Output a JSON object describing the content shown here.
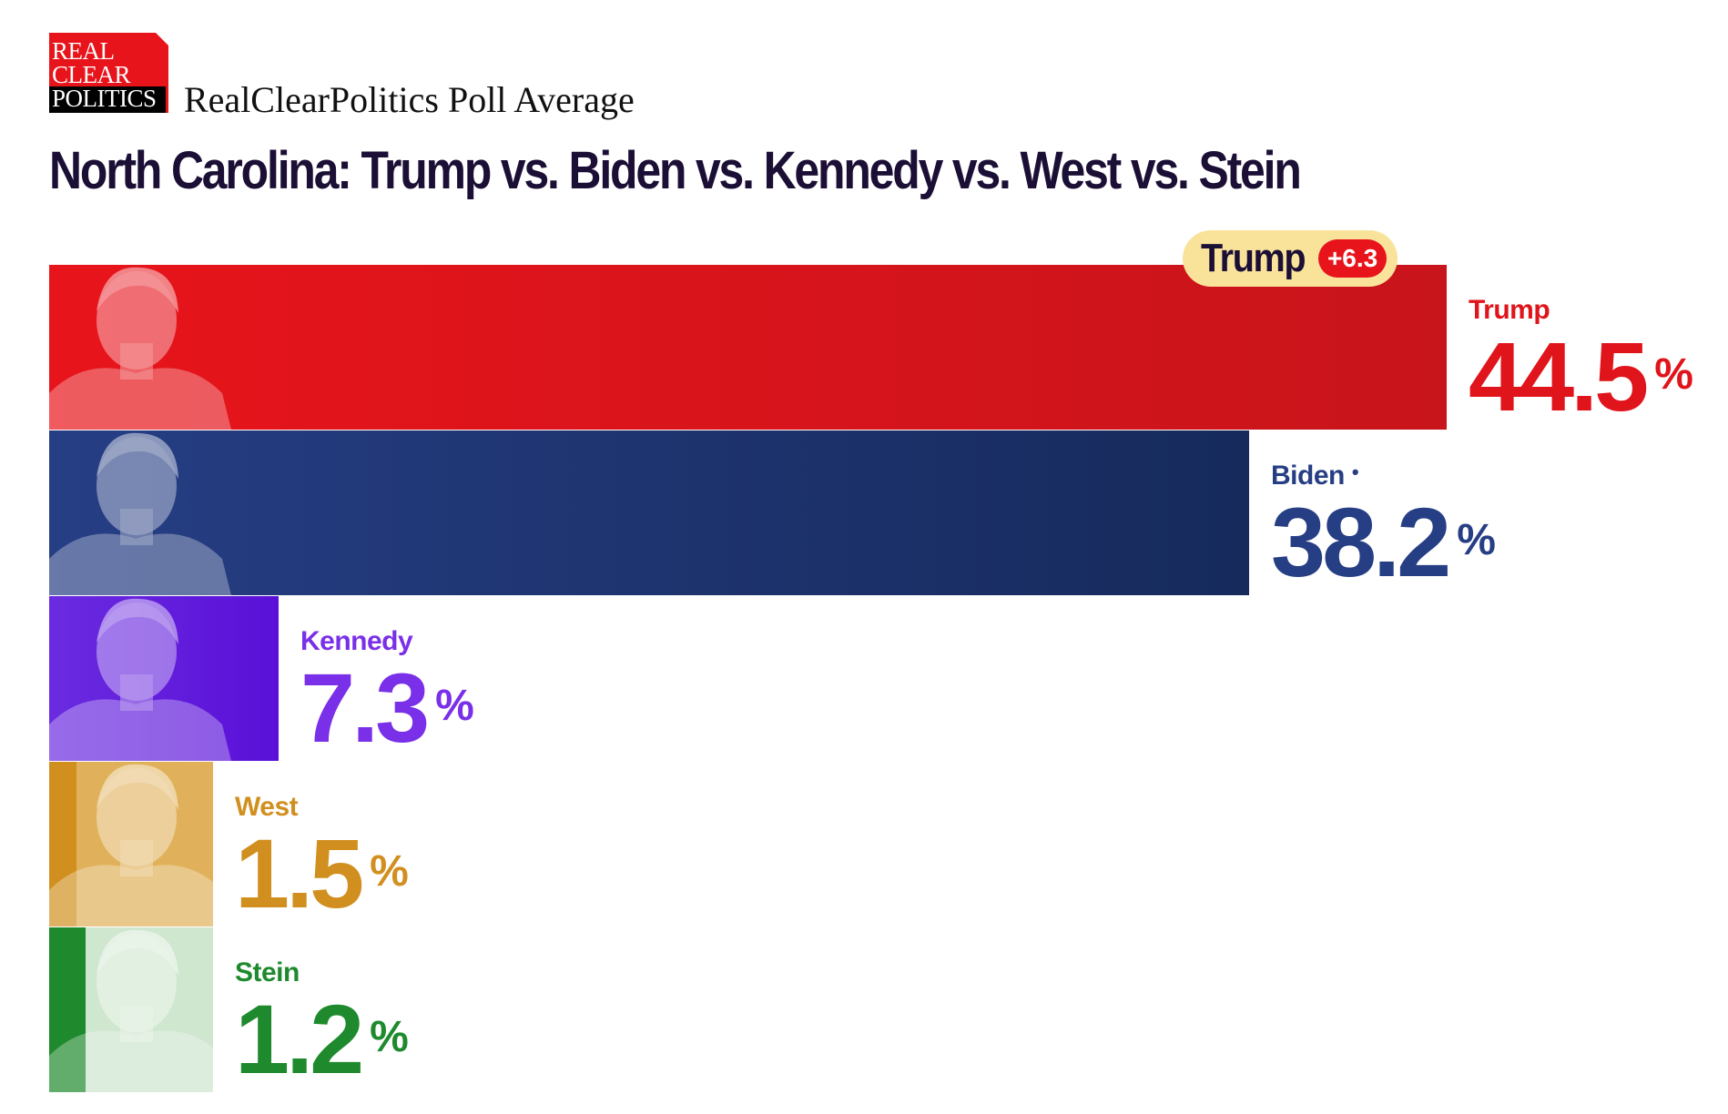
{
  "header": {
    "logo_lines": [
      "REAL",
      "CLEAR",
      "POLITICS"
    ],
    "subtitle": "RealClearPolitics Poll Average",
    "title": "North Carolina: Trump vs. Biden vs. Kennedy vs. West vs. Stein"
  },
  "leader": {
    "name": "Trump",
    "margin": "+6.3"
  },
  "chart_data": {
    "type": "bar",
    "orientation": "horizontal",
    "title": "North Carolina: Trump vs. Biden vs. Kennedy vs. West vs. Stein",
    "categories": [
      "Trump",
      "Biden",
      "Kennedy",
      "West",
      "Stein"
    ],
    "values": [
      44.5,
      38.2,
      7.3,
      1.5,
      1.2
    ],
    "unit": "%",
    "colors": [
      "#e8141b",
      "#263e84",
      "#6a2be0",
      "#d18f1f",
      "#1e8a2d"
    ],
    "label_colors": [
      "#e0141b",
      "#263e84",
      "#7a2fe8",
      "#d18f1f",
      "#1e8a2d"
    ],
    "gradient_end": [
      "#c8141b",
      "#162a5c",
      "#5a10d8",
      "#d18f1f",
      "#1e8a2d"
    ],
    "portrait_icons": [
      "trump-portrait-icon",
      "biden-portrait-icon",
      "kennedy-portrait-icon",
      "west-portrait-icon",
      "stein-portrait-icon"
    ],
    "incumbent_marker": "•",
    "legend": "none",
    "grid": false
  }
}
